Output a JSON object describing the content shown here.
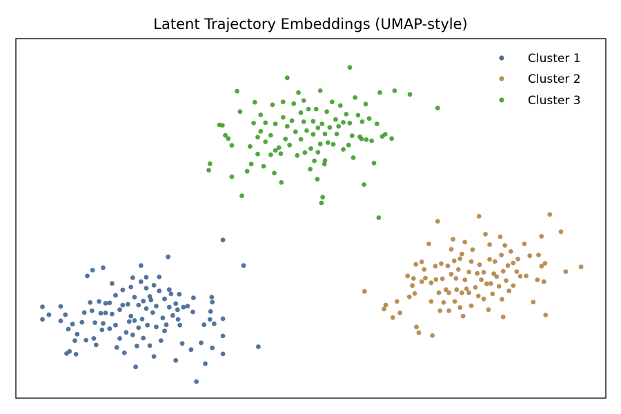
{
  "chart_data": {
    "type": "scatter",
    "title": "Latent Trajectory Embeddings (UMAP-style)",
    "xlabel": "",
    "ylabel": "",
    "xlim": [
      0,
      100
    ],
    "ylim": [
      0,
      100
    ],
    "axis_ticks": false,
    "grid": false,
    "legend_position": "top-right",
    "series": [
      {
        "name": "Cluster 1",
        "color": "#3a6190",
        "points": [
          [
            4.5,
            25.4
          ],
          [
            4.5,
            21.9
          ],
          [
            5.6,
            23.2
          ],
          [
            7.6,
            25.5
          ],
          [
            7.6,
            21.5
          ],
          [
            8.6,
            12.4
          ],
          [
            8.4,
            23.2
          ],
          [
            8.9,
            19.2
          ],
          [
            9.1,
            13.0
          ],
          [
            9.6,
            20.6
          ],
          [
            10.0,
            16.0
          ],
          [
            10.4,
            17.8
          ],
          [
            10.2,
            12.2
          ],
          [
            11.2,
            21.1
          ],
          [
            11.6,
            23.8
          ],
          [
            11.9,
            16.1
          ],
          [
            12.1,
            34.0
          ],
          [
            12.6,
            26.6
          ],
          [
            12.9,
            24.3
          ],
          [
            13.2,
            16.6
          ],
          [
            13.4,
            21.0
          ],
          [
            13.6,
            14.8
          ],
          [
            13.0,
            35.6
          ],
          [
            14.1,
            26.9
          ],
          [
            14.6,
            19.0
          ],
          [
            14.4,
            23.6
          ],
          [
            14.8,
            20.8
          ],
          [
            14.8,
            36.3
          ],
          [
            15.2,
            26.4
          ],
          [
            15.2,
            23.7
          ],
          [
            15.9,
            19.3
          ],
          [
            15.9,
            26.5
          ],
          [
            16.3,
            31.9
          ],
          [
            16.3,
            23.4
          ],
          [
            16.9,
            20.3
          ],
          [
            17.1,
            14.1
          ],
          [
            16.9,
            28.6
          ],
          [
            17.6,
            24.6
          ],
          [
            17.6,
            16.6
          ],
          [
            18.1,
            30.1
          ],
          [
            18.1,
            25.9
          ],
          [
            18.7,
            18.3
          ],
          [
            18.4,
            12.6
          ],
          [
            19.0,
            26.1
          ],
          [
            19.2,
            21.3
          ],
          [
            19.5,
            30.9
          ],
          [
            19.5,
            22.8
          ],
          [
            19.8,
            33.5
          ],
          [
            19.8,
            17.6
          ],
          [
            20.1,
            28.1
          ],
          [
            20.1,
            21.6
          ],
          [
            20.3,
            8.7
          ],
          [
            20.5,
            14.5
          ],
          [
            20.8,
            25.9
          ],
          [
            20.8,
            19.6
          ],
          [
            21.2,
            32.4
          ],
          [
            21.2,
            36.9
          ],
          [
            21.4,
            22.0
          ],
          [
            21.6,
            27.0
          ],
          [
            21.6,
            16.7
          ],
          [
            22.1,
            24.9
          ],
          [
            22.1,
            30.6
          ],
          [
            22.1,
            33.6
          ],
          [
            22.3,
            20.3
          ],
          [
            22.7,
            14.6
          ],
          [
            22.7,
            28.3
          ],
          [
            22.9,
            27.3
          ],
          [
            23.2,
            23.8
          ],
          [
            23.4,
            31.4
          ],
          [
            23.4,
            11.6
          ],
          [
            23.8,
            19.8
          ],
          [
            23.8,
            25.6
          ],
          [
            24.3,
            29.8
          ],
          [
            24.3,
            33.7
          ],
          [
            24.6,
            16.0
          ],
          [
            24.9,
            22.3
          ],
          [
            25.2,
            27.6
          ],
          [
            25.2,
            18.7
          ],
          [
            25.5,
            20.4
          ],
          [
            25.8,
            39.3
          ],
          [
            26.0,
            25.3
          ],
          [
            26.0,
            30.2
          ],
          [
            26.3,
            29.0
          ],
          [
            26.6,
            23.0
          ],
          [
            27.1,
            26.3
          ],
          [
            27.1,
            10.5
          ],
          [
            27.4,
            24.6
          ],
          [
            27.5,
            21.9
          ],
          [
            27.7,
            28.9
          ],
          [
            27.8,
            20.3
          ],
          [
            28.2,
            15.2
          ],
          [
            28.4,
            25.3
          ],
          [
            29.1,
            25.6
          ],
          [
            29.7,
            13.5
          ],
          [
            30.0,
            24.0
          ],
          [
            30.1,
            27.9
          ],
          [
            30.6,
            4.6
          ],
          [
            31.4,
            15.4
          ],
          [
            31.9,
            20.4
          ],
          [
            32.1,
            9.6
          ],
          [
            33.0,
            24.1
          ],
          [
            32.9,
            21.9
          ],
          [
            33.2,
            28.1
          ],
          [
            33.3,
            26.7
          ],
          [
            33.3,
            14.0
          ],
          [
            33.6,
            20.7
          ],
          [
            35.1,
            22.1
          ],
          [
            35.1,
            17.3
          ],
          [
            35.1,
            12.3
          ],
          [
            41.1,
            14.3
          ],
          [
            35.1,
            44.0
          ],
          [
            38.6,
            36.9
          ]
        ]
      },
      {
        "name": "Cluster 2",
        "color": "#b0803f",
        "points": [
          [
            59.1,
            29.7
          ],
          [
            62.4,
            24.8
          ],
          [
            62.7,
            25.9
          ],
          [
            63.9,
            22.4
          ],
          [
            64.6,
            26.9
          ],
          [
            65.1,
            23.7
          ],
          [
            66.4,
            34.0
          ],
          [
            66.7,
            28.2
          ],
          [
            67.2,
            31.3
          ],
          [
            67.4,
            33.3
          ],
          [
            67.6,
            29.1
          ],
          [
            68.3,
            18.2
          ],
          [
            67.8,
            37.2
          ],
          [
            67.9,
            19.8
          ],
          [
            68.8,
            32.4
          ],
          [
            68.8,
            37.9
          ],
          [
            69.2,
            35.8
          ],
          [
            69.4,
            33.4
          ],
          [
            70.0,
            42.9
          ],
          [
            70.4,
            26.9
          ],
          [
            70.4,
            32.1
          ],
          [
            70.6,
            17.4
          ],
          [
            71.5,
            49.2
          ],
          [
            71.1,
            36.7
          ],
          [
            71.2,
            33.0
          ],
          [
            71.9,
            24.3
          ],
          [
            71.7,
            29.3
          ],
          [
            72.1,
            37.4
          ],
          [
            72.3,
            33.2
          ],
          [
            72.5,
            26.6
          ],
          [
            72.9,
            30.2
          ],
          [
            73.2,
            36.8
          ],
          [
            73.4,
            24.3
          ],
          [
            73.4,
            29.3
          ],
          [
            73.8,
            41.4
          ],
          [
            73.8,
            34.5
          ],
          [
            74.1,
            44.2
          ],
          [
            74.3,
            38.2
          ],
          [
            74.4,
            26.9
          ],
          [
            74.6,
            33.3
          ],
          [
            74.7,
            30.2
          ],
          [
            75.0,
            35.8
          ],
          [
            75.3,
            38.8
          ],
          [
            75.3,
            25.2
          ],
          [
            75.6,
            29.3
          ],
          [
            75.8,
            22.8
          ],
          [
            75.6,
            40.1
          ],
          [
            76.1,
            43.4
          ],
          [
            76.1,
            32.9
          ],
          [
            76.4,
            30.4
          ],
          [
            76.8,
            35.1
          ],
          [
            76.8,
            29.3
          ],
          [
            77.2,
            38.0
          ],
          [
            77.2,
            25.7
          ],
          [
            77.4,
            41.3
          ],
          [
            77.9,
            30.8
          ],
          [
            78.2,
            34.7
          ],
          [
            78.5,
            50.6
          ],
          [
            78.4,
            28.4
          ],
          [
            78.6,
            37.1
          ],
          [
            78.9,
            32.9
          ],
          [
            79.3,
            27.6
          ],
          [
            79.3,
            35.0
          ],
          [
            79.6,
            45.6
          ],
          [
            79.8,
            31.8
          ],
          [
            80.1,
            24.6
          ],
          [
            80.3,
            38.6
          ],
          [
            80.3,
            42.7
          ],
          [
            80.5,
            31.9
          ],
          [
            80.8,
            29.0
          ],
          [
            81.0,
            34.6
          ],
          [
            81.2,
            38.0
          ],
          [
            81.5,
            33.8
          ],
          [
            81.9,
            31.1
          ],
          [
            82.1,
            44.9
          ],
          [
            82.3,
            39.8
          ],
          [
            82.4,
            27.5
          ],
          [
            82.6,
            35.3
          ],
          [
            82.6,
            22.6
          ],
          [
            82.9,
            42.5
          ],
          [
            83.1,
            32.7
          ],
          [
            83.4,
            36.9
          ],
          [
            83.6,
            29.8
          ],
          [
            83.9,
            40.8
          ],
          [
            84.3,
            37.6
          ],
          [
            84.3,
            31.3
          ],
          [
            84.9,
            35.2
          ],
          [
            85.1,
            38.7
          ],
          [
            85.5,
            33.9
          ],
          [
            86.2,
            42.9
          ],
          [
            86.5,
            34.0
          ],
          [
            87.1,
            39.6
          ],
          [
            87.7,
            26.7
          ],
          [
            88.4,
            32.9
          ],
          [
            88.6,
            39.8
          ],
          [
            89.1,
            45.0
          ],
          [
            89.1,
            36.7
          ],
          [
            89.5,
            32.4
          ],
          [
            89.7,
            37.5
          ],
          [
            89.8,
            23.1
          ],
          [
            90.5,
            51.1
          ],
          [
            92.4,
            46.3
          ],
          [
            93.2,
            35.2
          ],
          [
            95.8,
            36.5
          ]
        ]
      },
      {
        "name": "Cluster 3",
        "color": "#3c9a28",
        "points": [
          [
            32.7,
            63.4
          ],
          [
            32.9,
            65.2
          ],
          [
            35.0,
            75.9
          ],
          [
            35.5,
            73.1
          ],
          [
            36.0,
            72.2
          ],
          [
            36.6,
            70.3
          ],
          [
            36.6,
            61.6
          ],
          [
            37.5,
            85.4
          ],
          [
            38.0,
            79.7
          ],
          [
            39.7,
            70.0
          ],
          [
            39.9,
            65.1
          ],
          [
            40.5,
            82.3
          ],
          [
            40.3,
            76.5
          ],
          [
            41.0,
            72.6
          ],
          [
            41.0,
            67.9
          ],
          [
            41.5,
            74.2
          ],
          [
            41.5,
            78.8
          ],
          [
            42.0,
            64.5
          ],
          [
            42.3,
            71.3
          ],
          [
            42.3,
            76.6
          ],
          [
            43.2,
            67.7
          ],
          [
            43.2,
            73.1
          ],
          [
            43.5,
            81.6
          ],
          [
            43.8,
            62.6
          ],
          [
            44.0,
            76.3
          ],
          [
            44.6,
            69.7
          ],
          [
            44.9,
            68.0
          ],
          [
            45.3,
            82.4
          ],
          [
            45.3,
            78.1
          ],
          [
            45.7,
            72.1
          ],
          [
            46.0,
            75.6
          ],
          [
            46.0,
            89.1
          ],
          [
            46.4,
            70.4
          ],
          [
            46.8,
            77.2
          ],
          [
            47.1,
            81.9
          ],
          [
            47.4,
            74.1
          ],
          [
            47.7,
            67.5
          ],
          [
            47.9,
            85.0
          ],
          [
            48.3,
            79.4
          ],
          [
            48.3,
            72.0
          ],
          [
            48.8,
            76.9
          ],
          [
            48.8,
            82.8
          ],
          [
            49.0,
            68.3
          ],
          [
            49.3,
            74.4
          ],
          [
            49.6,
            80.4
          ],
          [
            49.9,
            63.7
          ],
          [
            50.0,
            69.4
          ],
          [
            50.4,
            77.0
          ],
          [
            50.4,
            73.4
          ],
          [
            50.6,
            66.0
          ],
          [
            50.9,
            80.4
          ],
          [
            51.2,
            68.4
          ],
          [
            51.2,
            75.2
          ],
          [
            51.6,
            85.5
          ],
          [
            51.6,
            70.7
          ],
          [
            51.9,
            76.3
          ],
          [
            52.4,
            66.1
          ],
          [
            52.4,
            73.5
          ],
          [
            52.7,
            79.7
          ],
          [
            52.9,
            71.1
          ],
          [
            53.2,
            75.3
          ],
          [
            53.6,
            82.4
          ],
          [
            53.8,
            70.6
          ],
          [
            54.2,
            77.5
          ],
          [
            54.4,
            73.5
          ],
          [
            54.7,
            75.6
          ],
          [
            55.0,
            81.4
          ],
          [
            55.5,
            69.2
          ],
          [
            55.5,
            76.7
          ],
          [
            56.0,
            79.0
          ],
          [
            56.4,
            70.4
          ],
          [
            56.6,
            76.5
          ],
          [
            57.0,
            73.0
          ],
          [
            57.2,
            66.9
          ],
          [
            57.5,
            83.6
          ],
          [
            58.0,
            78.7
          ],
          [
            58.6,
            72.1
          ],
          [
            58.7,
            76.9
          ],
          [
            59.0,
            59.4
          ],
          [
            59.3,
            81.8
          ],
          [
            59.4,
            71.9
          ],
          [
            59.9,
            77.8
          ],
          [
            60.3,
            71.6
          ],
          [
            60.7,
            65.4
          ],
          [
            61.2,
            76.3
          ],
          [
            61.5,
            50.2
          ],
          [
            61.7,
            85.0
          ],
          [
            62.1,
            72.8
          ],
          [
            62.6,
            73.4
          ],
          [
            63.7,
            72.2
          ],
          [
            64.2,
            85.5
          ],
          [
            66.8,
            84.5
          ],
          [
            71.5,
            80.7
          ],
          [
            34.5,
            76.0
          ],
          [
            38.3,
            56.3
          ],
          [
            51.8,
            54.3
          ],
          [
            51.1,
            60.9
          ],
          [
            52.0,
            55.9
          ],
          [
            56.6,
            92.0
          ],
          [
            52.3,
            65.1
          ],
          [
            58.3,
            72.7
          ],
          [
            39.2,
            63.1
          ],
          [
            44.0,
            68.9
          ],
          [
            45.0,
            60.0
          ]
        ]
      }
    ]
  }
}
